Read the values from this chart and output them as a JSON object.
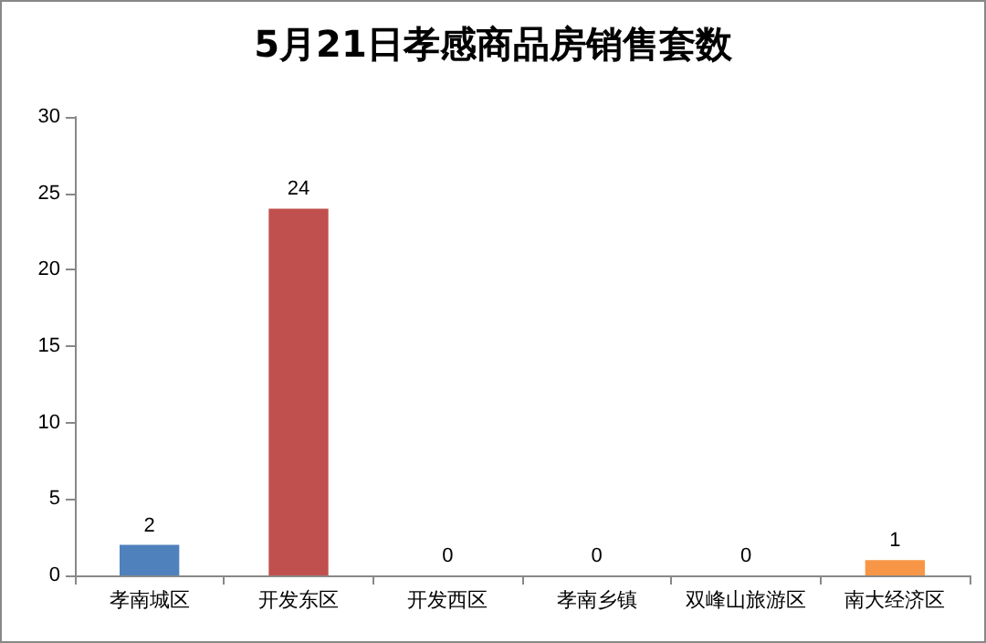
{
  "chart_data": {
    "type": "bar",
    "title": "5月21日孝感商品房销售套数",
    "categories": [
      "孝南城区",
      "开发东区",
      "开发西区",
      "孝南乡镇",
      "双峰山旅游区",
      "南大经济区"
    ],
    "values": [
      2,
      24,
      0,
      0,
      0,
      1
    ],
    "colors": [
      "#4f81bd",
      "#c0504d",
      "#9bbb59",
      "#8064a2",
      "#4bacc6",
      "#f79646"
    ],
    "ylim": [
      0,
      30
    ],
    "yticks": [
      0,
      5,
      10,
      15,
      20,
      25,
      30
    ],
    "data_labels": true
  }
}
